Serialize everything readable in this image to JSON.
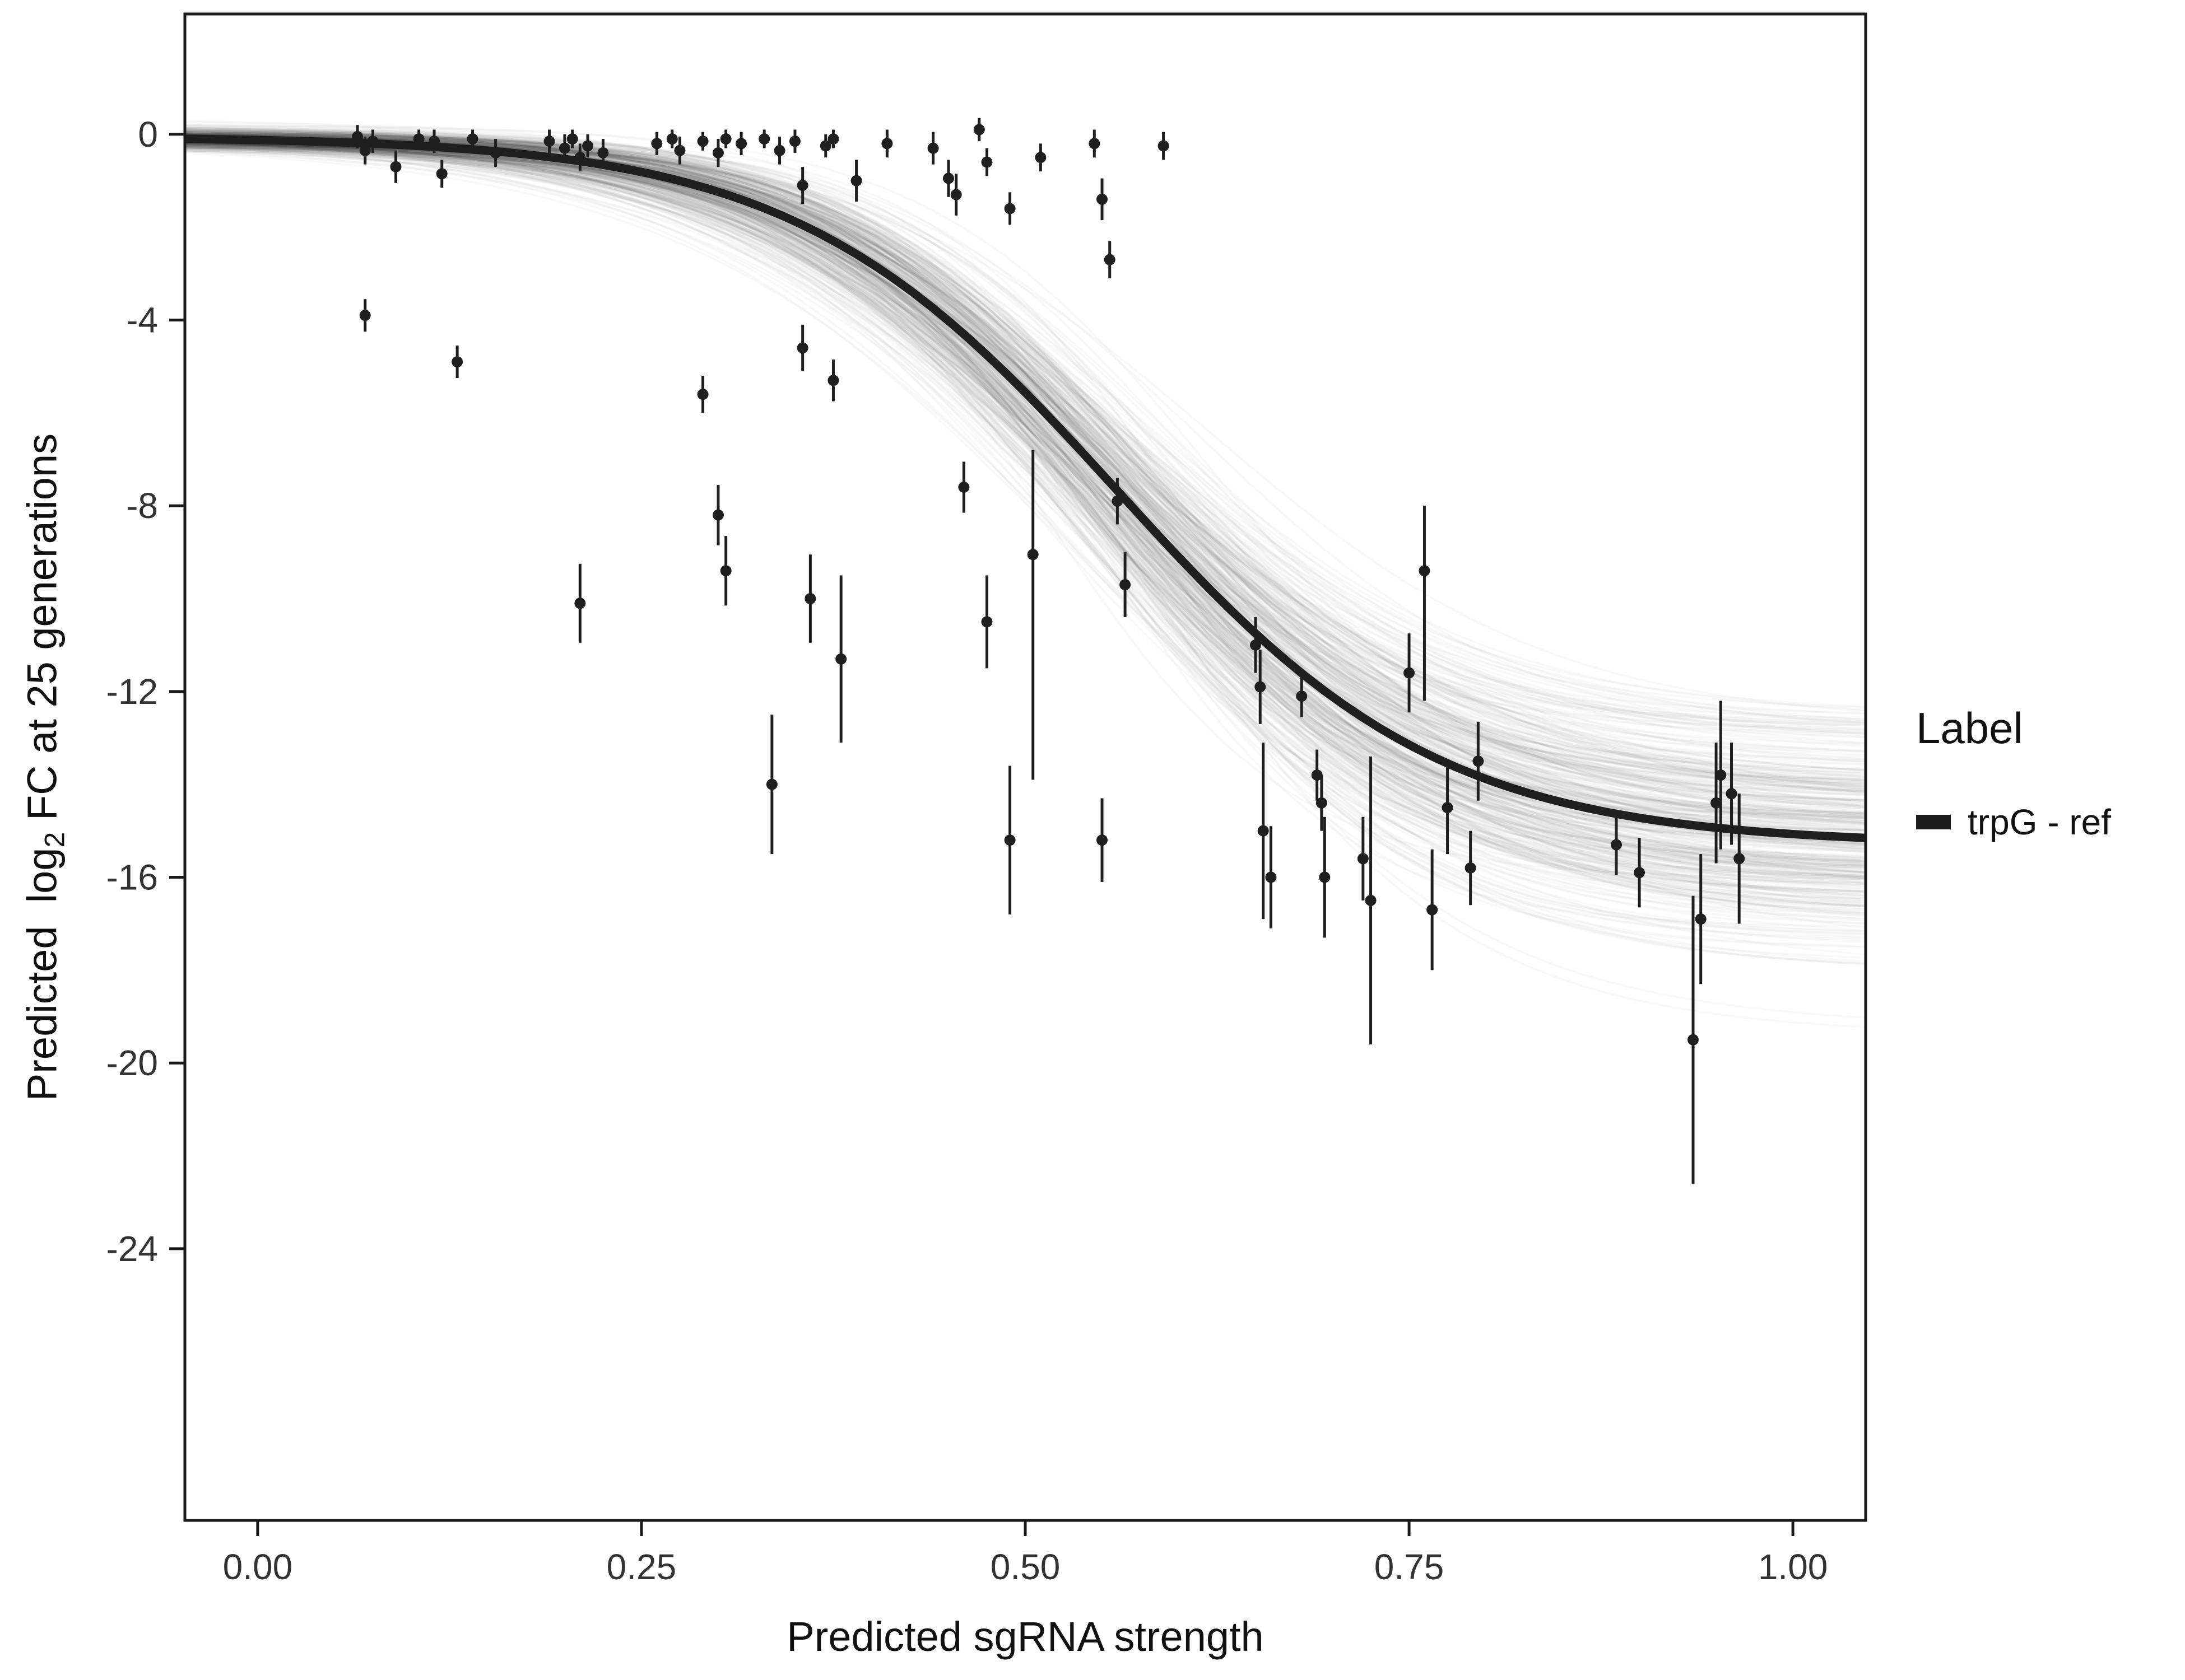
{
  "chart_data": {
    "type": "scatter",
    "title": "",
    "xlabel": "Predicted sgRNA strength",
    "ylabel": "Predicted  log2 FC at 25 generations",
    "ylabel_rich": {
      "pre": "Predicted  log",
      "sub": "2",
      "post": " FC at 25 generations"
    },
    "xlim": [
      -0.0474,
      1.0474
    ],
    "ylim": [
      -29.85,
      2.59
    ],
    "x_ticks": [
      0,
      0.25,
      0.5,
      0.75,
      1.0
    ],
    "x_tick_labels": [
      "0.00",
      "0.25",
      "0.50",
      "0.75",
      "1.00"
    ],
    "y_ticks": [
      0,
      -4,
      -8,
      -12,
      -16,
      -20,
      -24
    ],
    "y_tick_labels": [
      "0",
      "-4",
      "-8",
      "-12",
      "-16",
      "-20",
      "-24"
    ],
    "grid": false,
    "panel_border_color": "#1a1a1a",
    "tick_label_color": "#333333",
    "point_color": "#1f1f1f",
    "fit_curve": {
      "top": -0.05,
      "L": -15.3,
      "k": 9.5,
      "x0": 0.56,
      "color": "#1f1f1f",
      "width": 15
    },
    "ensemble": {
      "count": 380,
      "seed": 42,
      "top_sd": 0.12,
      "L_sd": 1.25,
      "k_sd": 1.1,
      "x0_sd": 0.022,
      "color": "#000000",
      "opacity": 0.022,
      "width": 4
    },
    "legend": {
      "title": "Label",
      "entries": [
        {
          "label": "trpG - ref",
          "color": "#1c1c1c"
        }
      ],
      "position": "right"
    },
    "points": [
      [
        0.065,
        -0.05,
        -0.3,
        0.2
      ],
      [
        0.07,
        -0.35,
        -0.65,
        -0.05
      ],
      [
        0.075,
        -0.15,
        -0.4,
        0.1
      ],
      [
        0.09,
        -0.7,
        -1.05,
        -0.35
      ],
      [
        0.105,
        -0.1,
        -0.3,
        0.1
      ],
      [
        0.115,
        -0.15,
        -0.4,
        0.1
      ],
      [
        0.12,
        -0.85,
        -1.15,
        -0.55
      ],
      [
        0.14,
        -0.1,
        -0.3,
        0.1
      ],
      [
        0.155,
        -0.4,
        -0.7,
        -0.1
      ],
      [
        0.19,
        -0.15,
        -0.4,
        0.1
      ],
      [
        0.2,
        -0.3,
        -0.6,
        0.0
      ],
      [
        0.205,
        -0.1,
        -0.3,
        0.1
      ],
      [
        0.21,
        -0.5,
        -0.8,
        -0.2
      ],
      [
        0.215,
        -0.25,
        -0.5,
        0.0
      ],
      [
        0.225,
        -0.4,
        -0.7,
        -0.1
      ],
      [
        0.26,
        -0.2,
        -0.45,
        0.05
      ],
      [
        0.27,
        -0.1,
        -0.3,
        0.1
      ],
      [
        0.275,
        -0.35,
        -0.65,
        -0.05
      ],
      [
        0.29,
        -0.15,
        -0.35,
        0.05
      ],
      [
        0.3,
        -0.4,
        -0.7,
        -0.1
      ],
      [
        0.305,
        -0.1,
        -0.3,
        0.1
      ],
      [
        0.315,
        -0.2,
        -0.45,
        0.05
      ],
      [
        0.33,
        -0.1,
        -0.3,
        0.1
      ],
      [
        0.34,
        -0.35,
        -0.65,
        -0.05
      ],
      [
        0.35,
        -0.15,
        -0.4,
        0.1
      ],
      [
        0.355,
        -1.1,
        -1.5,
        -0.7
      ],
      [
        0.37,
        -0.25,
        -0.5,
        0.0
      ],
      [
        0.375,
        -0.1,
        -0.3,
        0.1
      ],
      [
        0.39,
        -1.0,
        -1.45,
        -0.55
      ],
      [
        0.41,
        -0.2,
        -0.5,
        0.1
      ],
      [
        0.44,
        -0.3,
        -0.65,
        0.05
      ],
      [
        0.45,
        -0.95,
        -1.35,
        -0.55
      ],
      [
        0.455,
        -1.3,
        -1.75,
        -0.85
      ],
      [
        0.47,
        0.1,
        -0.15,
        0.35
      ],
      [
        0.475,
        -0.6,
        -0.9,
        -0.3
      ],
      [
        0.49,
        -1.6,
        -1.95,
        -1.25
      ],
      [
        0.51,
        -0.5,
        -0.8,
        -0.2
      ],
      [
        0.545,
        -0.2,
        -0.5,
        0.1
      ],
      [
        0.55,
        -1.4,
        -1.85,
        -0.95
      ],
      [
        0.555,
        -2.7,
        -3.1,
        -2.3
      ],
      [
        0.59,
        -0.25,
        -0.55,
        0.05
      ],
      [
        0.07,
        -3.9,
        -4.25,
        -3.55
      ],
      [
        0.13,
        -4.9,
        -5.25,
        -4.55
      ],
      [
        0.21,
        -10.1,
        -10.95,
        -9.25
      ],
      [
        0.29,
        -5.6,
        -6.0,
        -5.2
      ],
      [
        0.3,
        -8.2,
        -8.85,
        -7.55
      ],
      [
        0.305,
        -9.4,
        -10.15,
        -8.65
      ],
      [
        0.335,
        -14.0,
        -15.5,
        -12.5
      ],
      [
        0.355,
        -4.6,
        -5.1,
        -4.1
      ],
      [
        0.36,
        -10.0,
        -10.95,
        -9.05
      ],
      [
        0.375,
        -5.3,
        -5.75,
        -4.85
      ],
      [
        0.38,
        -11.3,
        -13.1,
        -9.5
      ],
      [
        0.46,
        -7.6,
        -8.15,
        -7.05
      ],
      [
        0.475,
        -10.5,
        -11.5,
        -9.5
      ],
      [
        0.49,
        -15.2,
        -16.8,
        -13.6
      ],
      [
        0.505,
        -9.05,
        -13.9,
        -6.8
      ],
      [
        0.55,
        -15.2,
        -16.1,
        -14.3
      ],
      [
        0.56,
        -7.9,
        -8.4,
        -7.4
      ],
      [
        0.565,
        -9.7,
        -10.4,
        -9.0
      ],
      [
        0.65,
        -11.0,
        -11.6,
        -10.4
      ],
      [
        0.653,
        -11.9,
        -12.7,
        -11.1
      ],
      [
        0.655,
        -15.0,
        -16.9,
        -13.1
      ],
      [
        0.66,
        -16.0,
        -17.1,
        -14.9
      ],
      [
        0.68,
        -12.1,
        -12.55,
        -11.65
      ],
      [
        0.69,
        -13.8,
        -14.35,
        -13.25
      ],
      [
        0.693,
        -14.4,
        -15.0,
        -13.8
      ],
      [
        0.695,
        -16.0,
        -17.3,
        -14.7
      ],
      [
        0.72,
        -15.6,
        -16.5,
        -14.7
      ],
      [
        0.725,
        -16.5,
        -19.6,
        -13.4
      ],
      [
        0.75,
        -11.6,
        -12.45,
        -10.75
      ],
      [
        0.76,
        -9.4,
        -12.2,
        -8.0
      ],
      [
        0.765,
        -16.7,
        -18.0,
        -15.4
      ],
      [
        0.775,
        -14.5,
        -15.5,
        -13.5
      ],
      [
        0.79,
        -15.8,
        -16.6,
        -15.0
      ],
      [
        0.795,
        -13.5,
        -14.35,
        -12.65
      ],
      [
        0.885,
        -15.3,
        -15.95,
        -14.65
      ],
      [
        0.9,
        -15.9,
        -16.65,
        -15.15
      ],
      [
        0.935,
        -19.5,
        -22.6,
        -16.4
      ],
      [
        0.94,
        -16.9,
        -18.3,
        -15.5
      ],
      [
        0.95,
        -14.4,
        -15.7,
        -13.1
      ],
      [
        0.953,
        -13.8,
        -15.4,
        -12.2
      ],
      [
        0.96,
        -14.2,
        -15.3,
        -13.1
      ],
      [
        0.965,
        -15.6,
        -17.0,
        -14.2
      ]
    ]
  }
}
